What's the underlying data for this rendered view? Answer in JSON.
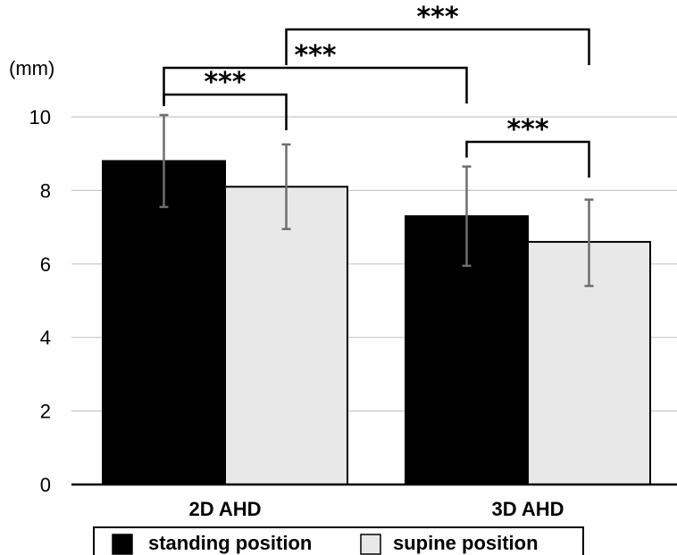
{
  "chart_data": {
    "type": "bar",
    "title": "",
    "xlabel": "",
    "ylabel": "(mm)",
    "ylim": [
      0,
      10
    ],
    "yticks": [
      0,
      2,
      4,
      6,
      8,
      10
    ],
    "grid": true,
    "categories": [
      "2D AHD",
      "3D AHD"
    ],
    "series": [
      {
        "name": "standing position",
        "color": "#000000",
        "values": [
          8.8,
          7.3
        ],
        "error_low": [
          7.55,
          5.95
        ],
        "error_high": [
          10.05,
          8.65
        ]
      },
      {
        "name": "supine position",
        "color": "#e8e8e8",
        "values": [
          8.1,
          6.6
        ],
        "error_low": [
          6.95,
          5.4
        ],
        "error_high": [
          9.25,
          7.75
        ]
      }
    ],
    "significance": [
      {
        "label": "***",
        "from": "2D AHD / standing position",
        "to": "2D AHD / supine position"
      },
      {
        "label": "***",
        "from": "2D AHD / standing position",
        "to": "3D AHD / standing position"
      },
      {
        "label": "***",
        "from": "3D AHD / standing position",
        "to": "3D AHD / supine position"
      },
      {
        "label": "***",
        "from": "2D AHD / supine position",
        "to": "3D AHD / supine position"
      }
    ],
    "legend_position": "bottom"
  }
}
